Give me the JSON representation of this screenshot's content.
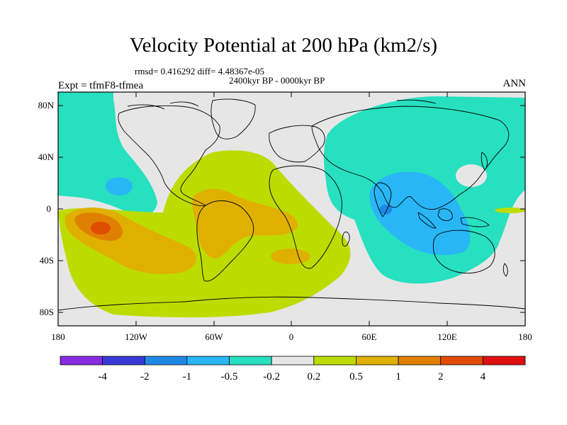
{
  "header": {
    "title": "Velocity Potential at 200 hPa (km2/s)",
    "stats": "rmsd= 0.416292 diff= 4.48367e-05",
    "period": "2400kyr BP - 0000kyr BP",
    "experiment": "Expt = tfmF8-tfmea",
    "season": "ANN"
  },
  "axes": {
    "lon_ticks": [
      "180",
      "120W",
      "60W",
      "0",
      "60E",
      "120E",
      "180"
    ],
    "lat_ticks": [
      "80N",
      "40N",
      "0",
      "40S",
      "80S"
    ]
  },
  "colorbar": {
    "labels": [
      "-4",
      "-2",
      "-1",
      "-0.5",
      "-0.2",
      "0.2",
      "0.5",
      "1",
      "2",
      "4"
    ],
    "colors": [
      "#8a2be2",
      "#3a3ad8",
      "#1e88e5",
      "#29b6f6",
      "#26e0c0",
      "#e6e6e6",
      "#bcdc00",
      "#e0b000",
      "#e08000",
      "#e04c00",
      "#e01010"
    ]
  },
  "colors": {
    "background_band": "#e6e6e6",
    "neg_light": "#26e0c0",
    "neg_mid": "#29b6f6",
    "neg_deep": "#1e88e5",
    "pos_light": "#bcdc00",
    "pos_mid": "#e0b000",
    "pos_high": "#e08000",
    "pos_max": "#e04c00"
  }
}
